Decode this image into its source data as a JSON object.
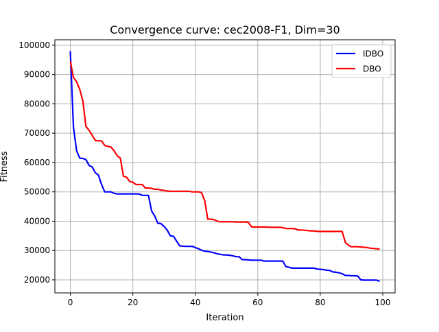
{
  "chart_data": {
    "type": "line",
    "title": "Convergence curve:  cec2008-F1, Dim=30",
    "xlabel": "Iteration",
    "ylabel": "Fitness",
    "xlim": [
      -4.95,
      103.95
    ],
    "ylim": [
      15550,
      101850
    ],
    "xticks": [
      0,
      20,
      40,
      60,
      80,
      100
    ],
    "yticks": [
      20000,
      30000,
      40000,
      50000,
      60000,
      70000,
      80000,
      90000,
      100000
    ],
    "grid": true,
    "legend_placement": "top-right",
    "series": [
      {
        "name": "IDBO",
        "color": "#0000ff",
        "values": [
          98000,
          72000,
          64000,
          61500,
          61400,
          61000,
          59000,
          58500,
          56500,
          55700,
          52500,
          50000,
          50000,
          50000,
          49500,
          49300,
          49300,
          49300,
          49300,
          49300,
          49300,
          49300,
          49300,
          48800,
          48800,
          48800,
          43500,
          41800,
          39300,
          39200,
          38200,
          37000,
          35000,
          34900,
          33200,
          31600,
          31500,
          31400,
          31400,
          31400,
          31000,
          30600,
          30100,
          29800,
          29700,
          29500,
          29200,
          28900,
          28700,
          28500,
          28500,
          28400,
          28200,
          27900,
          27900,
          26900,
          26900,
          26800,
          26700,
          26700,
          26700,
          26700,
          26400,
          26400,
          26400,
          26400,
          26400,
          26400,
          26400,
          24500,
          24300,
          24000,
          24000,
          24000,
          24000,
          24000,
          24000,
          24000,
          24000,
          23700,
          23600,
          23500,
          23300,
          23200,
          22700,
          22600,
          22400,
          22100,
          21500,
          21500,
          21400,
          21400,
          21300,
          20000,
          19900,
          19900,
          19900,
          19900,
          19900,
          19500
        ]
      },
      {
        "name": "DBO",
        "color": "#ff0000",
        "values": [
          94500,
          89000,
          87500,
          85000,
          81000,
          72300,
          71000,
          69300,
          67500,
          67400,
          67400,
          65800,
          65500,
          65300,
          64000,
          62300,
          61500,
          55300,
          55000,
          53500,
          53300,
          52500,
          52500,
          52500,
          51300,
          51300,
          51200,
          50900,
          50900,
          50600,
          50500,
          50300,
          50200,
          50200,
          50200,
          50200,
          50200,
          50200,
          50200,
          50000,
          50000,
          50000,
          49800,
          47000,
          40700,
          40700,
          40500,
          40000,
          39800,
          39800,
          39800,
          39800,
          39800,
          39700,
          39700,
          39700,
          39700,
          39600,
          38100,
          38000,
          38000,
          38000,
          38000,
          38000,
          37900,
          37900,
          37900,
          37900,
          37800,
          37500,
          37500,
          37500,
          37400,
          37000,
          37000,
          36900,
          36800,
          36700,
          36700,
          36500,
          36500,
          36500,
          36500,
          36500,
          36500,
          36500,
          36500,
          36500,
          32800,
          31800,
          31300,
          31300,
          31300,
          31200,
          31100,
          31000,
          30800,
          30700,
          30600,
          30500
        ]
      }
    ]
  }
}
